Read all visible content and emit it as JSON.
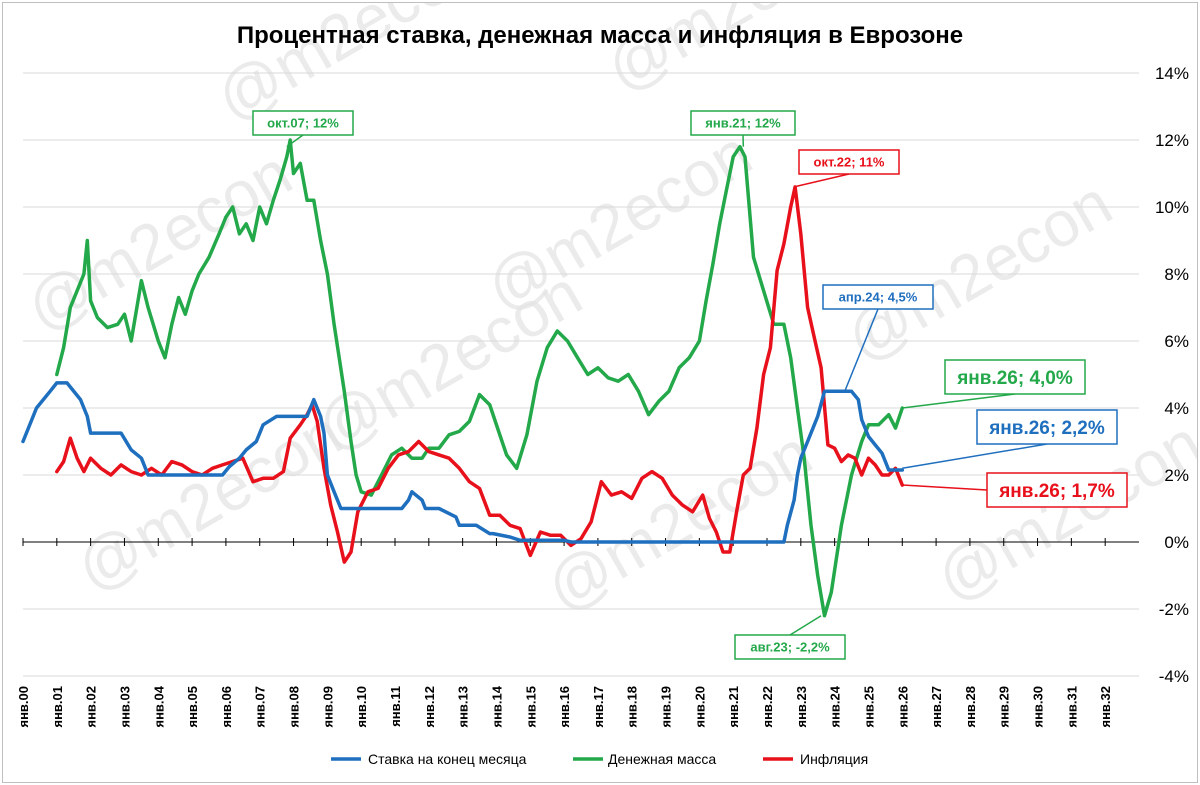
{
  "chart_data": {
    "type": "line",
    "title": "Процентная ставка, денежная масса и инфляция в Еврозоне",
    "watermark": "@m2econ",
    "ylim": [
      -4,
      14
    ],
    "xlim": [
      2000,
      2033
    ],
    "y_tick_labels": [
      "14%",
      "12%",
      "10%",
      "8%",
      "6%",
      "4%",
      "2%",
      "0%",
      "-2%",
      "-4%"
    ],
    "y_tick_values": [
      14,
      12,
      10,
      8,
      6,
      4,
      2,
      0,
      -2,
      -4
    ],
    "x_tick_labels": [
      "янв.00",
      "янв.01",
      "янв.02",
      "янв.03",
      "янв.04",
      "янв.05",
      "янв.06",
      "янв.07",
      "янв.08",
      "янв.09",
      "янв.10",
      "янв.11",
      "янв.12",
      "янв.13",
      "янв.14",
      "янв.15",
      "янв.16",
      "янв.17",
      "янв.18",
      "янв.19",
      "янв.20",
      "янв.21",
      "янв.22",
      "янв.23",
      "янв.24",
      "янв.25",
      "янв.26",
      "янв.27",
      "янв.28",
      "янв.29",
      "янв.30",
      "янв.31",
      "янв.32"
    ],
    "grid": true,
    "legend_position": "bottom",
    "series": [
      {
        "name": "Ставка на конец месяца",
        "color": "#1f6fbf",
        "x": [
          2000.0,
          2000.4,
          2000.8,
          2001.0,
          2001.3,
          2001.7,
          2001.9,
          2002.0,
          2002.9,
          2003.2,
          2003.5,
          2003.7,
          2005.9,
          2006.1,
          2006.4,
          2006.6,
          2006.9,
          2007.1,
          2007.5,
          2008.4,
          2008.6,
          2008.8,
          2008.9,
          2009.0,
          2009.2,
          2009.4,
          2010.0,
          2011.2,
          2011.4,
          2011.5,
          2011.8,
          2011.9,
          2012.3,
          2012.8,
          2012.9,
          2013.4,
          2013.8,
          2013.9,
          2014.4,
          2014.7,
          2014.8,
          2015.0,
          2016.0,
          2016.2,
          2022.5,
          2022.6,
          2022.8,
          2022.9,
          2023.0,
          2023.2,
          2023.4,
          2023.5,
          2023.7,
          2024.5,
          2024.7,
          2024.8,
          2024.9,
          2025.0,
          2025.2,
          2025.4,
          2025.5,
          2025.6,
          2025.9,
          2026.0
        ],
        "y": [
          3.0,
          4.0,
          4.5,
          4.75,
          4.75,
          4.25,
          3.75,
          3.25,
          3.25,
          2.75,
          2.5,
          2.0,
          2.0,
          2.25,
          2.5,
          2.75,
          3.0,
          3.5,
          3.75,
          3.75,
          4.25,
          3.75,
          3.25,
          2.0,
          1.5,
          1.0,
          1.0,
          1.0,
          1.25,
          1.5,
          1.25,
          1.0,
          1.0,
          0.75,
          0.5,
          0.5,
          0.25,
          0.25,
          0.15,
          0.05,
          0.05,
          0.05,
          0.05,
          0.0,
          0.0,
          0.5,
          1.25,
          2.0,
          2.5,
          3.0,
          3.5,
          3.75,
          4.5,
          4.5,
          4.25,
          3.65,
          3.4,
          3.15,
          2.9,
          2.65,
          2.4,
          2.15,
          2.15,
          2.15
        ]
      },
      {
        "name": "Денежная масса",
        "color": "#23a84a",
        "x": [
          2001.0,
          2001.2,
          2001.4,
          2001.6,
          2001.8,
          2001.9,
          2002.0,
          2002.2,
          2002.5,
          2002.8,
          2003.0,
          2003.2,
          2003.5,
          2003.7,
          2004.0,
          2004.2,
          2004.4,
          2004.6,
          2004.8,
          2005.0,
          2005.2,
          2005.5,
          2005.8,
          2006.0,
          2006.2,
          2006.4,
          2006.6,
          2006.8,
          2007.0,
          2007.2,
          2007.4,
          2007.6,
          2007.8,
          2007.9,
          2008.0,
          2008.2,
          2008.4,
          2008.6,
          2008.8,
          2009.0,
          2009.2,
          2009.5,
          2009.7,
          2009.85,
          2010.0,
          2010.3,
          2010.6,
          2010.9,
          2011.2,
          2011.5,
          2011.8,
          2012.0,
          2012.3,
          2012.6,
          2012.9,
          2013.2,
          2013.5,
          2013.8,
          2014.1,
          2014.3,
          2014.6,
          2014.9,
          2015.2,
          2015.5,
          2015.8,
          2016.1,
          2016.4,
          2016.7,
          2017.0,
          2017.3,
          2017.6,
          2017.9,
          2018.2,
          2018.5,
          2018.8,
          2019.1,
          2019.4,
          2019.7,
          2020.0,
          2020.2,
          2020.4,
          2020.6,
          2020.8,
          2021.0,
          2021.2,
          2021.35,
          2021.6,
          2021.9,
          2022.2,
          2022.5,
          2022.7,
          2022.9,
          2023.1,
          2023.3,
          2023.5,
          2023.7,
          2023.9,
          2024.2,
          2024.5,
          2024.8,
          2025.0,
          2025.3,
          2025.6,
          2025.8,
          2026.0
        ],
        "y": [
          5.0,
          5.8,
          7.0,
          7.5,
          8.0,
          9.0,
          7.2,
          6.7,
          6.4,
          6.5,
          6.8,
          6.0,
          7.8,
          7.0,
          6.0,
          5.5,
          6.5,
          7.3,
          6.8,
          7.5,
          8.0,
          8.5,
          9.2,
          9.7,
          10.0,
          9.2,
          9.5,
          9.0,
          10.0,
          9.5,
          10.2,
          10.8,
          11.5,
          12.0,
          11.0,
          11.3,
          10.2,
          10.2,
          9.0,
          8.0,
          6.5,
          4.5,
          3.0,
          2.0,
          1.5,
          1.4,
          2.0,
          2.6,
          2.8,
          2.5,
          2.5,
          2.8,
          2.8,
          3.2,
          3.3,
          3.6,
          4.4,
          4.1,
          3.2,
          2.6,
          2.2,
          3.2,
          4.8,
          5.8,
          6.3,
          6.0,
          5.5,
          5.0,
          5.2,
          4.9,
          4.8,
          5.0,
          4.5,
          3.8,
          4.2,
          4.5,
          5.2,
          5.5,
          6.0,
          7.2,
          8.3,
          9.5,
          10.5,
          11.5,
          11.8,
          11.5,
          8.5,
          7.5,
          6.5,
          6.5,
          5.5,
          4.0,
          2.5,
          0.5,
          -1.0,
          -2.2,
          -1.5,
          0.5,
          2.0,
          3.0,
          3.5,
          3.5,
          3.8,
          3.4,
          4.0
        ]
      },
      {
        "name": "Инфляция",
        "color": "#e8101a",
        "x": [
          2001.0,
          2001.2,
          2001.4,
          2001.6,
          2001.8,
          2002.0,
          2002.3,
          2002.6,
          2002.9,
          2003.2,
          2003.5,
          2003.8,
          2004.1,
          2004.4,
          2004.7,
          2005.0,
          2005.3,
          2005.6,
          2005.9,
          2006.2,
          2006.5,
          2006.8,
          2007.1,
          2007.4,
          2007.7,
          2007.9,
          2008.2,
          2008.4,
          2008.55,
          2008.7,
          2008.9,
          2009.1,
          2009.3,
          2009.5,
          2009.7,
          2009.9,
          2010.2,
          2010.5,
          2010.8,
          2011.1,
          2011.4,
          2011.7,
          2012.0,
          2012.3,
          2012.6,
          2012.9,
          2013.2,
          2013.5,
          2013.8,
          2014.1,
          2014.4,
          2014.7,
          2015.0,
          2015.3,
          2015.6,
          2015.9,
          2016.2,
          2016.5,
          2016.8,
          2017.1,
          2017.4,
          2017.7,
          2018.0,
          2018.3,
          2018.6,
          2018.9,
          2019.2,
          2019.5,
          2019.8,
          2020.1,
          2020.3,
          2020.5,
          2020.7,
          2020.9,
          2021.1,
          2021.3,
          2021.5,
          2021.7,
          2021.9,
          2022.1,
          2022.3,
          2022.5,
          2022.7,
          2022.83,
          2023.0,
          2023.2,
          2023.4,
          2023.6,
          2023.8,
          2024.0,
          2024.2,
          2024.4,
          2024.6,
          2024.8,
          2025.0,
          2025.2,
          2025.4,
          2025.6,
          2025.8,
          2026.0
        ],
        "y": [
          2.1,
          2.4,
          3.1,
          2.5,
          2.1,
          2.5,
          2.2,
          2.0,
          2.3,
          2.1,
          2.0,
          2.2,
          2.0,
          2.4,
          2.3,
          2.1,
          2.0,
          2.2,
          2.3,
          2.4,
          2.5,
          1.8,
          1.9,
          1.9,
          2.1,
          3.1,
          3.5,
          3.8,
          4.1,
          3.6,
          2.2,
          1.1,
          0.3,
          -0.6,
          -0.3,
          0.9,
          1.5,
          1.6,
          2.2,
          2.6,
          2.7,
          3.0,
          2.7,
          2.6,
          2.5,
          2.2,
          1.8,
          1.6,
          0.8,
          0.8,
          0.5,
          0.4,
          -0.4,
          0.3,
          0.2,
          0.2,
          -0.1,
          0.1,
          0.6,
          1.8,
          1.4,
          1.5,
          1.3,
          1.9,
          2.1,
          1.9,
          1.4,
          1.1,
          0.9,
          1.4,
          0.7,
          0.3,
          -0.3,
          -0.3,
          0.9,
          2.0,
          2.2,
          3.4,
          5.0,
          5.8,
          8.1,
          8.9,
          10.0,
          10.6,
          9.2,
          7.0,
          6.1,
          5.2,
          2.9,
          2.8,
          2.4,
          2.6,
          2.5,
          2.0,
          2.5,
          2.3,
          2.0,
          2.0,
          2.2,
          1.7
        ]
      }
    ],
    "annotations": [
      {
        "text": "окт.07; 12%",
        "color": "#23a84a",
        "x": 2007.8,
        "y": 11.8
      },
      {
        "text": "янв.21; 12%",
        "color": "#23a84a",
        "x": 2021.3,
        "y": 11.8
      },
      {
        "text": "окт.22; 11%",
        "color": "#e8101a",
        "x": 2022.8,
        "y": 10.6
      },
      {
        "text": "апр.24; 4,5%",
        "color": "#1f6fbf",
        "x": 2024.3,
        "y": 4.5
      },
      {
        "text": "авг.23; -2,2%",
        "color": "#23a84a",
        "x": 2023.6,
        "y": -2.2
      },
      {
        "text": "янв.26; 4,0%",
        "color": "#23a84a",
        "x": 2026.0,
        "y": 4.0
      },
      {
        "text": "янв.26; 2,2%",
        "color": "#1f6fbf",
        "x": 2026.0,
        "y": 2.2
      },
      {
        "text": "янв.26; 1,7%",
        "color": "#e8101a",
        "x": 2026.0,
        "y": 1.7
      }
    ]
  }
}
